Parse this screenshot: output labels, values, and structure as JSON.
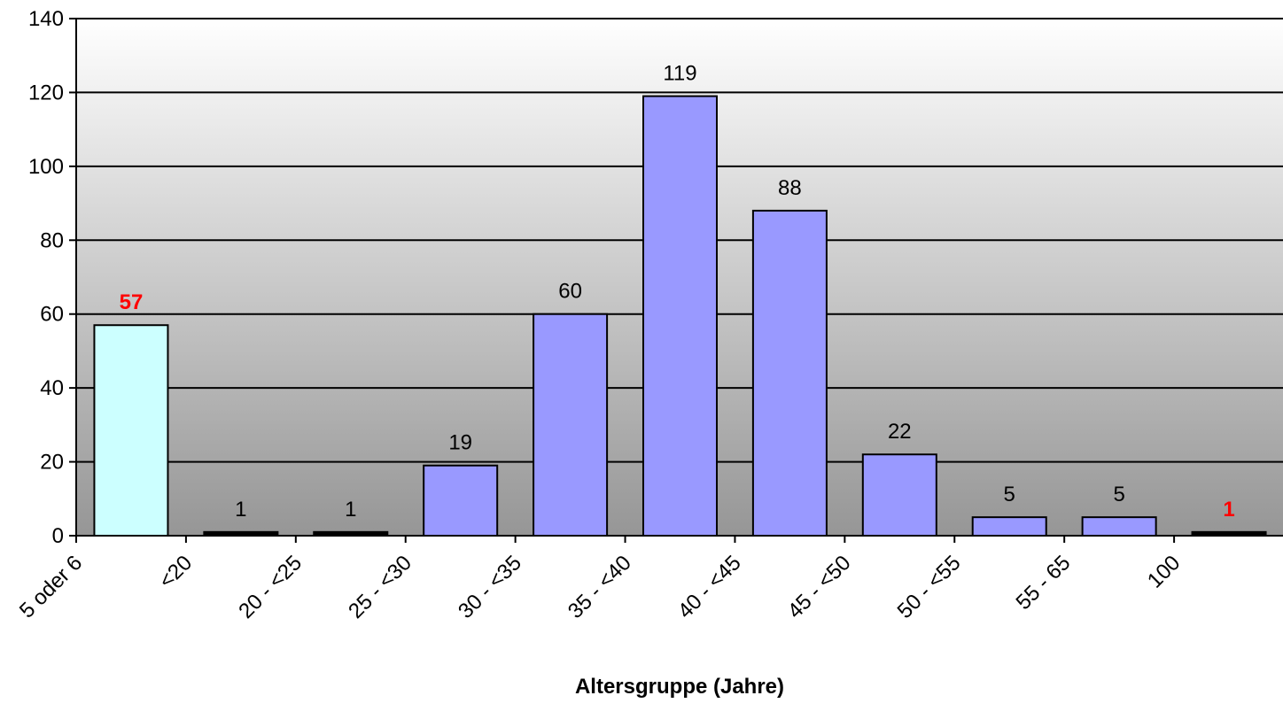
{
  "chart_data": {
    "type": "bar",
    "title": "",
    "xlabel": "Altersgruppe (Jahre)",
    "ylabel": "",
    "ylim": [
      0,
      140
    ],
    "yticks": [
      0,
      20,
      40,
      60,
      80,
      100,
      120,
      140
    ],
    "grid": true,
    "legend": "none",
    "categories": [
      "5 oder 6",
      "<20",
      "20 - <25",
      "25 - <30",
      "30 - <35",
      "35 - <40",
      "40 - <45",
      "45 - <50",
      "50 - <55",
      "55 - 65",
      "100"
    ],
    "values": [
      57,
      1,
      1,
      19,
      60,
      119,
      88,
      22,
      5,
      5,
      1
    ],
    "labels": [
      "57",
      "1",
      "1",
      "19",
      "60",
      "119",
      "88",
      "22",
      "5",
      "5",
      "1"
    ],
    "bar_colors": [
      "#ccffff",
      "#000000",
      "#000000",
      "#9999ff",
      "#9999ff",
      "#9999ff",
      "#9999ff",
      "#9999ff",
      "#9999ff",
      "#9999ff",
      "#000000"
    ],
    "label_colors": [
      "#ff0000",
      "#000000",
      "#000000",
      "#000000",
      "#000000",
      "#000000",
      "#000000",
      "#000000",
      "#000000",
      "#000000",
      "#ff0000"
    ],
    "label_bold": [
      true,
      false,
      false,
      false,
      false,
      false,
      false,
      false,
      false,
      false,
      true
    ],
    "background_gradient": [
      "#ffffff",
      "#969696"
    ]
  }
}
